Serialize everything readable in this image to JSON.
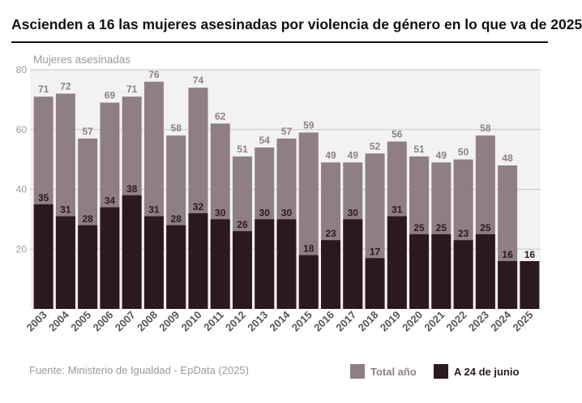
{
  "title": "Ascienden a 16 las mujeres asesinadas por violencia de género en lo que va de 2025",
  "source": "Fuente: Ministerio de Igualdad - EpData (2025)",
  "colors": {
    "total": "#8f7f82",
    "junio": "#2b1922",
    "plot_bg": "#f2f2f2",
    "grid": "#ffffff",
    "axis_text": "#9a9a9a"
  },
  "chart_data": {
    "type": "bar",
    "ylabel": "Mujeres asesinadas",
    "ylim": [
      0,
      80
    ],
    "yticks": [
      20,
      40,
      60,
      80
    ],
    "categories": [
      "2003",
      "2004",
      "2005",
      "2006",
      "2007",
      "2008",
      "2009",
      "2010",
      "2011",
      "2012",
      "2013",
      "2014",
      "2015",
      "2016",
      "2017",
      "2018",
      "2019",
      "2020",
      "2021",
      "2022",
      "2023",
      "2024",
      "2025"
    ],
    "series": [
      {
        "name": "Total año",
        "values": [
          71,
          72,
          57,
          69,
          71,
          76,
          58,
          74,
          62,
          51,
          54,
          57,
          59,
          49,
          49,
          52,
          56,
          51,
          49,
          50,
          58,
          48,
          null
        ]
      },
      {
        "name": "A 24 de junio",
        "values": [
          35,
          31,
          28,
          34,
          38,
          31,
          28,
          32,
          30,
          26,
          30,
          30,
          18,
          23,
          30,
          17,
          31,
          25,
          25,
          23,
          25,
          16,
          16
        ]
      }
    ],
    "legend": [
      "Total año",
      "A 24 de junio"
    ]
  }
}
